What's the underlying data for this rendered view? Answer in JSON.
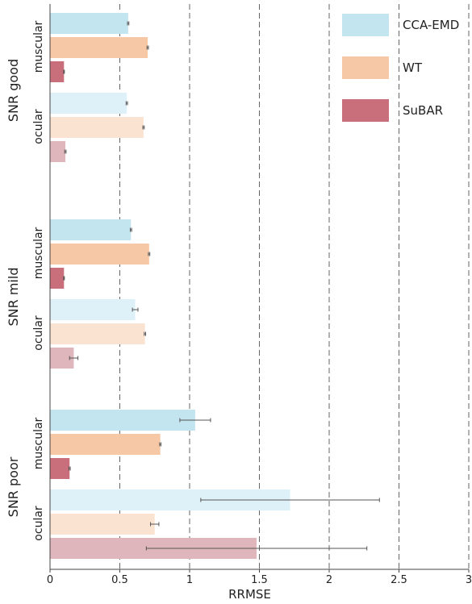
{
  "chart_data": {
    "type": "bar",
    "orientation": "horizontal",
    "title": "",
    "xlabel": "RRMSE",
    "xlim": [
      0,
      3
    ],
    "xticks": [
      "0",
      "0.5",
      "1",
      "1.5",
      "2",
      "2.5",
      "3"
    ],
    "grid": "vertical dashed lines at 0.5, 1, 1.5, 2, 2.5",
    "legend": {
      "placement": "top-right",
      "entries": [
        "CCA-EMD",
        "WT",
        "SuBAR"
      ]
    },
    "colors": {
      "CCA-EMD": "#c3e5f0",
      "WT": "#f7c8a6",
      "SuBAR": "#c86f7b",
      "CCA-EMD-light": "#dff1f8",
      "WT-light": "#fbe3d2",
      "SuBAR-light": "#e0b6bd"
    },
    "groups": [
      {
        "label": "SNR good",
        "subgroups": [
          {
            "label": "muscular",
            "bars": [
              {
                "series": "CCA-EMD",
                "value": 0.56,
                "error": 0.005
              },
              {
                "series": "WT",
                "value": 0.7,
                "error": 0.005
              },
              {
                "series": "SuBAR",
                "value": 0.1,
                "error": 0.003
              }
            ]
          },
          {
            "label": "ocular",
            "bars": [
              {
                "series": "CCA-EMD",
                "value": 0.55,
                "error": 0.005
              },
              {
                "series": "WT",
                "value": 0.67,
                "error": 0.005
              },
              {
                "series": "SuBAR",
                "value": 0.11,
                "error": 0.005
              }
            ]
          }
        ]
      },
      {
        "label": "SNR mild",
        "subgroups": [
          {
            "label": "muscular",
            "bars": [
              {
                "series": "CCA-EMD",
                "value": 0.58,
                "error": 0.005
              },
              {
                "series": "WT",
                "value": 0.71,
                "error": 0.005
              },
              {
                "series": "SuBAR",
                "value": 0.1,
                "error": 0.003
              }
            ]
          },
          {
            "label": "ocular",
            "bars": [
              {
                "series": "CCA-EMD",
                "value": 0.61,
                "error": 0.02
              },
              {
                "series": "WT",
                "value": 0.68,
                "error": 0.005
              },
              {
                "series": "SuBAR",
                "value": 0.17,
                "error": 0.03
              }
            ]
          }
        ]
      },
      {
        "label": "SNR poor",
        "subgroups": [
          {
            "label": "muscular",
            "bars": [
              {
                "series": "CCA-EMD",
                "value": 1.04,
                "error": 0.11
              },
              {
                "series": "WT",
                "value": 0.79,
                "error": 0.005
              },
              {
                "series": "SuBAR",
                "value": 0.14,
                "error": 0.005
              }
            ]
          },
          {
            "label": "ocular",
            "bars": [
              {
                "series": "CCA-EMD",
                "value": 1.72,
                "error": 0.64
              },
              {
                "series": "WT",
                "value": 0.75,
                "error": 0.03
              },
              {
                "series": "SuBAR",
                "value": 1.48,
                "error": 0.79
              }
            ]
          }
        ]
      }
    ]
  }
}
